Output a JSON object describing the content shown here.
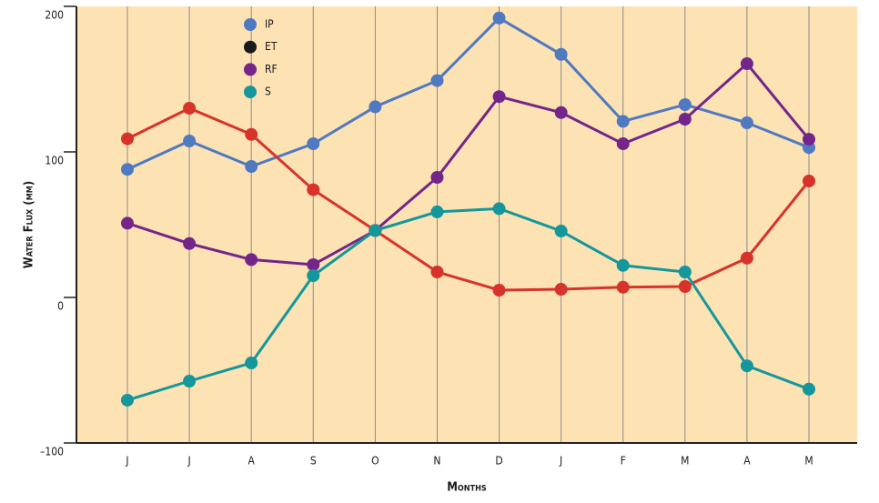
{
  "chart_data": {
    "type": "line",
    "x_label": "Months",
    "y_label": "Water Flux (mm)",
    "categories": [
      "J",
      "J",
      "A",
      "S",
      "O",
      "N",
      "D",
      "J",
      "F",
      "M",
      "A",
      "M"
    ],
    "ylim": [
      -100,
      200
    ],
    "yticks": [
      {
        "value": -100,
        "label": "–100"
      },
      0,
      100,
      200
    ],
    "grid": "x",
    "background": "#fde2b4",
    "legend": "top-left",
    "series": [
      {
        "name": "IP",
        "color": "#4f79c0",
        "legend_color": "#4f79c0",
        "values": [
          88,
          107.5,
          90,
          105.6,
          131,
          149,
          192,
          167,
          121,
          132.5,
          120,
          103
        ]
      },
      {
        "name": "ET",
        "color": "#d7332a",
        "legend_color": "#1a1a1a",
        "values": [
          109,
          130,
          112,
          74,
          46,
          17.5,
          5,
          5.6,
          7,
          7.5,
          27,
          80
        ]
      },
      {
        "name": "RF",
        "color": "#74258a",
        "legend_color": "#74258a",
        "values": [
          51,
          37,
          26,
          22.5,
          46,
          82.5,
          138,
          127,
          105.6,
          122.5,
          160.6,
          108.7
        ]
      },
      {
        "name": "S",
        "color": "#14979b",
        "legend_color": "#14979b",
        "values": [
          -70.6,
          -57.5,
          -45,
          15,
          46,
          58.8,
          61,
          45.6,
          22,
          17.5,
          -47,
          -63
        ]
      }
    ]
  }
}
